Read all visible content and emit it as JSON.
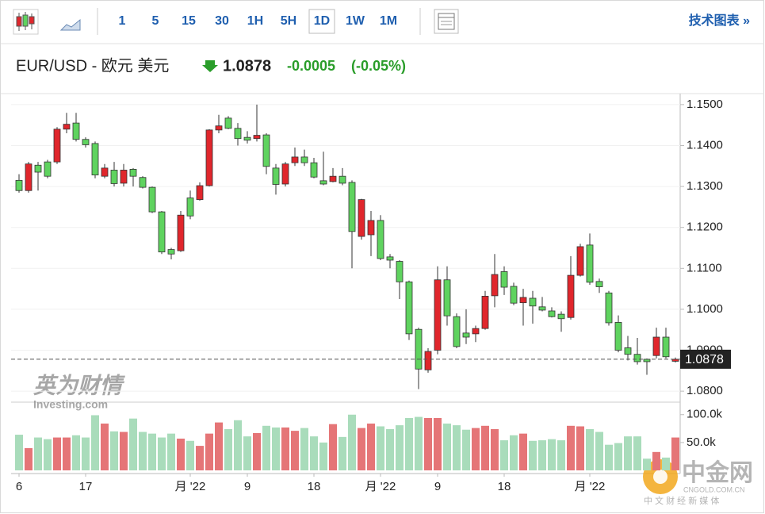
{
  "toolbar": {
    "intervals": [
      "1",
      "5",
      "15",
      "30",
      "1H",
      "5H",
      "1D",
      "1W",
      "1M"
    ],
    "active": "1D",
    "link": "技术图表 »"
  },
  "header": {
    "symbol": "EUR/USD - 欧元 美元",
    "price": 1.0878,
    "change": -0.0005,
    "change_pct": "(-0.05%)"
  },
  "watermarks": {
    "left_title": "英为财情",
    "left_sub": "Investing.com",
    "right_title": "中金网",
    "right_url": "CNGOLD.COM.CN",
    "right_sub": "中 文 财 经 新 媒 体"
  },
  "chart_data": {
    "type": "candlestick",
    "categories": [
      "6",
      null,
      null,
      null,
      null,
      null,
      null,
      "17",
      null,
      null,
      null,
      null,
      null,
      null,
      null,
      null,
      null,
      null,
      "月 '22",
      null,
      null,
      null,
      null,
      null,
      "9",
      null,
      null,
      null,
      null,
      null,
      null,
      "18",
      null,
      null,
      null,
      null,
      null,
      null,
      "月 '22",
      null,
      null,
      null,
      null,
      null,
      "9",
      null,
      null,
      null,
      null,
      null,
      null,
      "18",
      null,
      null,
      null,
      null,
      null,
      null,
      null,
      null,
      "月 '22",
      null,
      null,
      null,
      null,
      null,
      null,
      null,
      null,
      null
    ],
    "open": [
      1.1315,
      1.129,
      1.1352,
      1.136,
      1.136,
      1.144,
      1.1455,
      1.1415,
      1.1405,
      1.1325,
      1.134,
      1.1308,
      1.1342,
      1.1322,
      1.1298,
      1.1238,
      1.1146,
      1.1143,
      1.1272,
      1.1268,
      1.1302,
      1.1438,
      1.1467,
      1.1442,
      1.142,
      1.1417,
      1.1426,
      1.1345,
      1.1306,
      1.1358,
      1.1372,
      1.1358,
      1.1314,
      1.1312,
      1.1325,
      1.131,
      1.1178,
      1.1182,
      1.1217,
      1.1128,
      1.1117,
      1.1067,
      1.0951,
      1.0852,
      1.09,
      1.1072,
      1.0982,
      1.0942,
      1.094,
      1.0953,
      1.1033,
      1.1092,
      1.1056,
      1.1016,
      1.1027,
      1.1006,
      1.0996,
      1.0988,
      1.098,
      1.1083,
      1.1157,
      1.1068,
      1.104,
      1.0968,
      1.0906,
      1.089,
      1.0878,
      1.0887,
      1.0932,
      1.0873
    ],
    "high": [
      1.133,
      1.136,
      1.136,
      1.1365,
      1.1445,
      1.148,
      1.148,
      1.142,
      1.141,
      1.1355,
      1.136,
      1.1355,
      1.1345,
      1.1325,
      1.13,
      1.124,
      1.115,
      1.124,
      1.129,
      1.131,
      1.144,
      1.1475,
      1.1472,
      1.1455,
      1.1435,
      1.15,
      1.143,
      1.1355,
      1.136,
      1.1395,
      1.139,
      1.137,
      1.1385,
      1.1345,
      1.1345,
      1.1315,
      1.127,
      1.124,
      1.123,
      1.1135,
      1.112,
      1.107,
      1.0955,
      1.0905,
      1.1105,
      1.1105,
      1.099,
      1.1,
      1.096,
      1.1045,
      1.1135,
      1.1105,
      1.1065,
      1.105,
      1.1045,
      1.103,
      1.1005,
      1.0995,
      1.113,
      1.116,
      1.1185,
      1.1075,
      1.1045,
      1.0985,
      1.0935,
      1.093,
      1.088,
      1.0955,
      1.0955,
      1.0882
    ],
    "low": [
      1.1285,
      1.1285,
      1.129,
      1.132,
      1.1355,
      1.143,
      1.141,
      1.1395,
      1.132,
      1.132,
      1.13,
      1.13,
      1.13,
      1.1295,
      1.1235,
      1.1135,
      1.1122,
      1.114,
      1.122,
      1.1265,
      1.13,
      1.143,
      1.144,
      1.14,
      1.1405,
      1.141,
      1.133,
      1.128,
      1.13,
      1.135,
      1.135,
      1.132,
      1.1303,
      1.131,
      1.1303,
      1.11,
      1.117,
      1.113,
      1.112,
      1.11,
      1.1025,
      1.0925,
      1.0805,
      1.0845,
      1.089,
      1.096,
      1.0905,
      1.0915,
      1.092,
      1.095,
      1.1005,
      1.1035,
      1.101,
      1.096,
      1.0965,
      1.0995,
      1.098,
      1.0945,
      1.0975,
      1.108,
      1.106,
      1.104,
      1.096,
      1.0895,
      1.0875,
      1.0865,
      1.084,
      1.088,
      1.088,
      1.087
    ],
    "close": [
      1.129,
      1.1355,
      1.1335,
      1.1325,
      1.144,
      1.1452,
      1.1415,
      1.1402,
      1.1328,
      1.1345,
      1.1307,
      1.134,
      1.1325,
      1.1298,
      1.1238,
      1.114,
      1.1135,
      1.123,
      1.1228,
      1.1302,
      1.1438,
      1.1448,
      1.1442,
      1.1417,
      1.1413,
      1.1425,
      1.1349,
      1.1305,
      1.1355,
      1.1372,
      1.1358,
      1.1323,
      1.1306,
      1.1325,
      1.1308,
      1.119,
      1.1268,
      1.1217,
      1.1124,
      1.112,
      1.1067,
      1.094,
      1.0854,
      1.0897,
      1.1072,
      1.0984,
      1.0909,
      1.0932,
      1.0953,
      1.1032,
      1.1085,
      1.1054,
      1.1015,
      1.1029,
      1.1008,
      1.0998,
      1.0982,
      1.0977,
      1.1083,
      1.1153,
      1.1066,
      1.1055,
      1.0967,
      1.09,
      1.089,
      1.0872,
      1.0872,
      1.0932,
      1.0884,
      1.0878
    ],
    "volume": [
      64,
      40,
      59,
      56,
      59,
      59,
      63,
      59,
      99,
      84,
      70,
      69,
      93,
      69,
      66,
      59,
      66,
      57,
      53,
      44,
      66,
      86,
      74,
      90,
      61,
      67,
      80,
      77,
      77,
      71,
      76,
      61,
      50,
      83,
      60,
      100,
      76,
      84,
      79,
      74,
      81,
      94,
      96,
      94,
      94,
      84,
      81,
      73,
      76,
      80,
      74,
      54,
      63,
      66,
      53,
      54,
      56,
      54,
      80,
      79,
      74,
      69,
      46,
      49,
      61,
      61,
      21,
      33,
      23,
      59
    ],
    "ylim": [
      1.0777,
      1.1523
    ],
    "yticks": [
      {
        "value": 1.15,
        "label": "1.1500"
      },
      {
        "value": 1.14,
        "label": "1.1400"
      },
      {
        "value": 1.13,
        "label": "1.1300"
      },
      {
        "value": 1.12,
        "label": "1.1200"
      },
      {
        "value": 1.11,
        "label": "1.1100"
      },
      {
        "value": 1.1,
        "label": "1.1000"
      },
      {
        "value": 1.09,
        "label": "1.0900"
      },
      {
        "value": 1.08,
        "label": "1.0800"
      }
    ],
    "y2lim": [
      0,
      121
    ],
    "y2ticks": [
      {
        "value": 100,
        "label": "100.0k"
      },
      {
        "value": 50,
        "label": "50.0k"
      }
    ],
    "up_color": "#e0262c",
    "down_color": "#5fd35f",
    "up_volume_color": "#e57577",
    "down_volume_color": "#a9dcbb",
    "grid": true
  }
}
